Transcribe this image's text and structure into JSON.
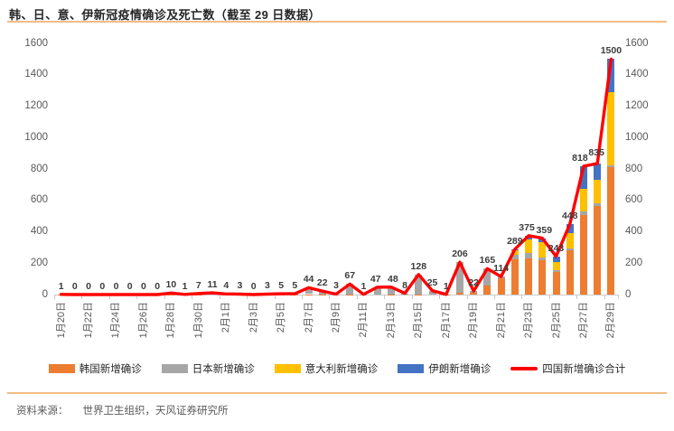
{
  "page": {
    "title": "韩、日、意、伊新冠疫情确诊及死亡数（截至 29 日数据）",
    "source": {
      "label": "资料来源：",
      "text": "世界卫生组织，天风证券研究所"
    },
    "accent_color": "#F2BC87"
  },
  "chart_data": {
    "type": "bar",
    "subtype": "stacked-columns-with-total-line",
    "title": "韩、日、意、伊新冠疫情确诊及死亡数（截至 29 日数据）",
    "grid": false,
    "legend_position": "bottom",
    "dual_value_axis": true,
    "ylim": [
      0,
      1600
    ],
    "y_ticks": [
      0,
      200,
      400,
      600,
      800,
      1000,
      1200,
      1400,
      1600
    ],
    "x_tick_step": 2,
    "categories": [
      "1月20日",
      "1月21日",
      "1月22日",
      "1月23日",
      "1月24日",
      "1月25日",
      "1月26日",
      "1月27日",
      "1月28日",
      "1月29日",
      "1月30日",
      "1月31日",
      "2月1日",
      "2月2日",
      "2月3日",
      "2月4日",
      "2月5日",
      "2月6日",
      "2月7日",
      "2月8日",
      "2月9日",
      "2月10日",
      "2月11日",
      "2月12日",
      "2月13日",
      "2月14日",
      "2月15日",
      "2月16日",
      "2月17日",
      "2月18日",
      "2月19日",
      "2月20日",
      "2月21日",
      "2月22日",
      "2月23日",
      "2月24日",
      "2月25日",
      "2月26日",
      "2月27日",
      "2月28日",
      "2月29日"
    ],
    "series": [
      {
        "name": "韩国新增确诊",
        "color": "#ED7D31",
        "values": [
          1,
          0,
          0,
          0,
          0,
          0,
          0,
          0,
          3,
          0,
          3,
          4,
          1,
          1,
          0,
          1,
          2,
          1,
          3,
          2,
          0,
          1,
          0,
          0,
          1,
          4,
          2,
          0,
          1,
          10,
          12,
          55,
          105,
          225,
          230,
          218,
          144,
          284,
          505,
          565,
          813
        ]
      },
      {
        "name": "日本新增确诊",
        "color": "#A6A6A6",
        "values": [
          0,
          0,
          0,
          0,
          0,
          0,
          0,
          0,
          7,
          1,
          4,
          7,
          3,
          2,
          0,
          2,
          3,
          4,
          41,
          20,
          3,
          66,
          1,
          47,
          47,
          4,
          126,
          25,
          0,
          196,
          10,
          110,
          9,
          27,
          35,
          19,
          10,
          10,
          25,
          15,
          9
        ]
      },
      {
        "name": "意大利新增确诊",
        "color": "#FFC000",
        "values": [
          0,
          0,
          0,
          0,
          0,
          0,
          0,
          0,
          0,
          0,
          0,
          0,
          0,
          0,
          0,
          0,
          0,
          0,
          0,
          0,
          0,
          0,
          0,
          0,
          0,
          0,
          0,
          0,
          0,
          0,
          0,
          0,
          0,
          34,
          85,
          96,
          55,
          97,
          144,
          150,
          466
        ]
      },
      {
        "name": "伊朗新增确诊",
        "color": "#4472C4",
        "values": [
          0,
          0,
          0,
          0,
          0,
          0,
          0,
          0,
          0,
          0,
          0,
          0,
          0,
          0,
          0,
          0,
          0,
          0,
          0,
          0,
          0,
          0,
          0,
          0,
          0,
          0,
          0,
          0,
          0,
          0,
          0,
          0,
          0,
          3,
          25,
          26,
          34,
          57,
          144,
          105,
          212
        ]
      }
    ],
    "line_series": {
      "name": "四国新增确诊合计",
      "color": "#FF0000",
      "values": [
        1,
        0,
        0,
        0,
        0,
        0,
        0,
        0,
        10,
        1,
        7,
        11,
        4,
        3,
        0,
        3,
        5,
        5,
        44,
        22,
        3,
        67,
        1,
        47,
        48,
        8,
        128,
        25,
        1,
        206,
        22,
        165,
        114,
        289,
        375,
        359,
        243,
        448,
        818,
        835,
        1500
      ]
    }
  }
}
